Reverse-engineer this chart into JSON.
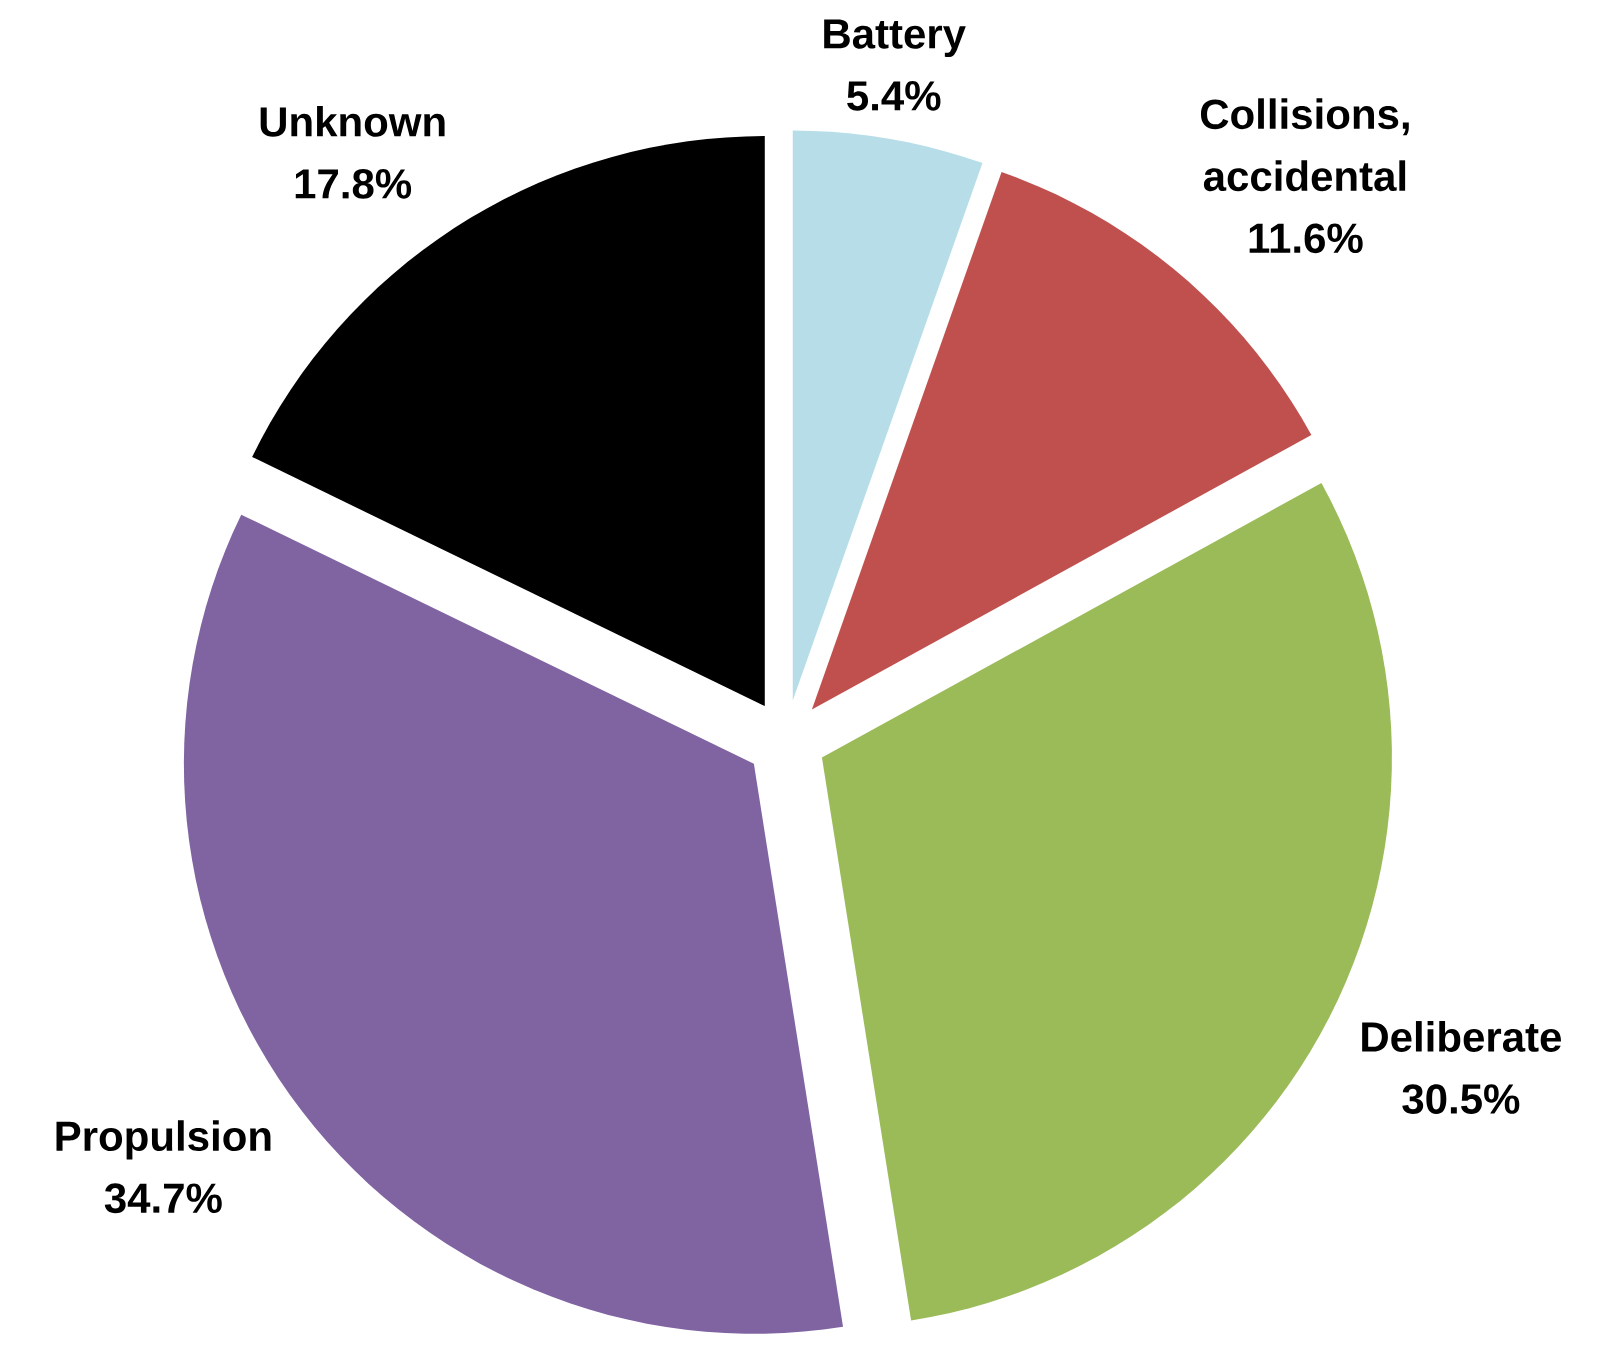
{
  "chart_data": {
    "type": "pie",
    "categories": [
      "Battery",
      "Collisions, accidental",
      "Deliberate",
      "Propulsion",
      "Unknown"
    ],
    "values": [
      5.4,
      11.6,
      30.5,
      34.7,
      17.8
    ],
    "colors": [
      "#b7dee8",
      "#c0504d",
      "#9bbb59",
      "#8064a2",
      "#000000"
    ],
    "value_labels": [
      "5.4%",
      "11.6%",
      "30.5%",
      "34.7%",
      "17.8%"
    ]
  }
}
